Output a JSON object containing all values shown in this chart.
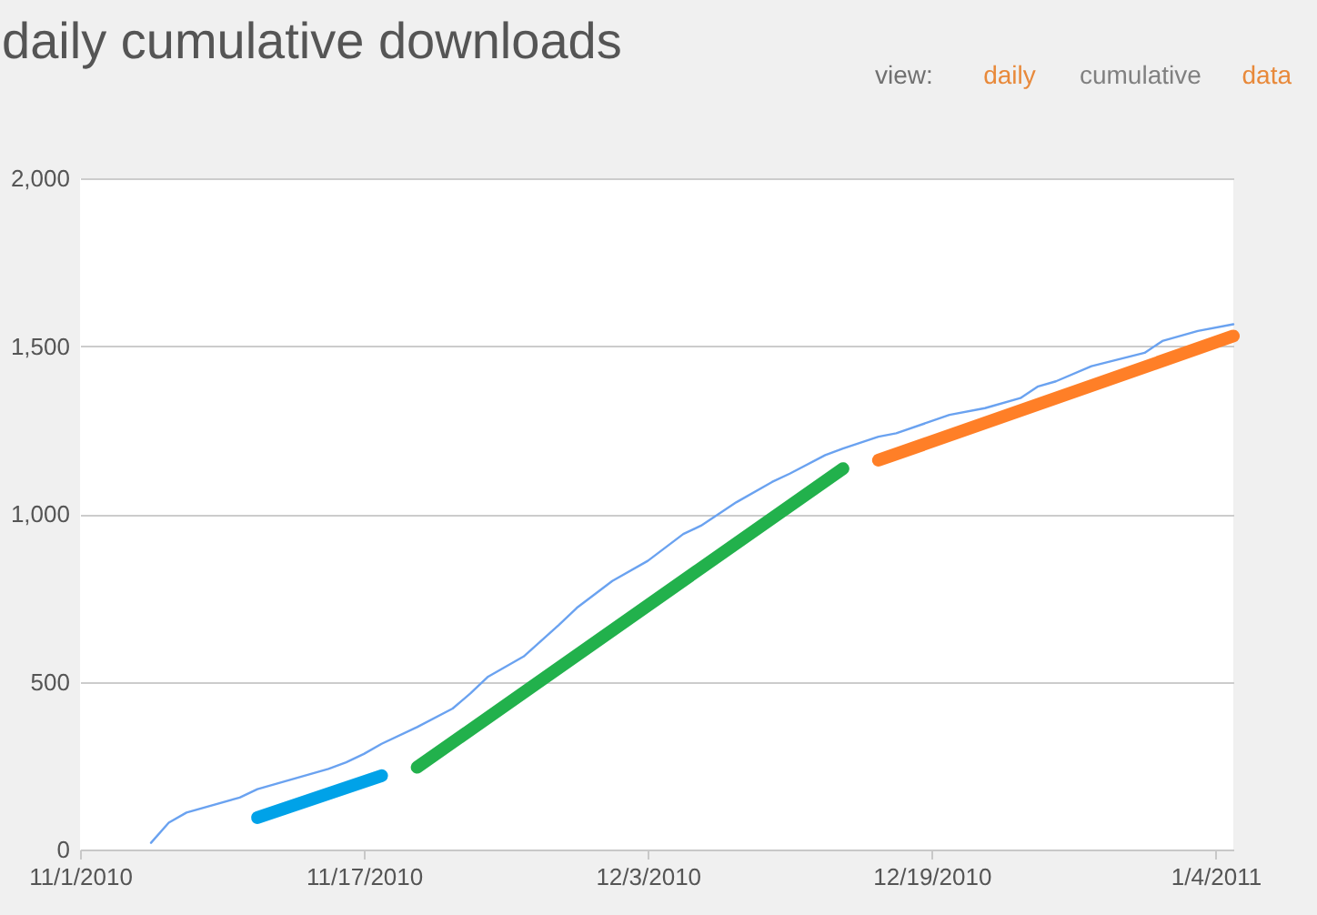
{
  "chart_data": {
    "type": "line",
    "title": "daily cumulative downloads",
    "annotations": [
      "view:",
      "daily",
      "cumulative",
      "data"
    ],
    "xlim": [
      "2010-11-01",
      "2011-01-05"
    ],
    "xticks": [
      {
        "value": "2010-11-01",
        "label": "11/1/2010"
      },
      {
        "value": "2010-11-17",
        "label": "11/17/2010"
      },
      {
        "value": "2010-12-03",
        "label": "12/3/2010"
      },
      {
        "value": "2010-12-19",
        "label": "12/19/2010"
      },
      {
        "value": "2011-01-04",
        "label": "1/4/2011"
      }
    ],
    "ylim": [
      0,
      2000
    ],
    "yticks": [
      {
        "value": 0,
        "label": "0"
      },
      {
        "value": 500,
        "label": "500"
      },
      {
        "value": 1000,
        "label": "1,000"
      },
      {
        "value": 1500,
        "label": "1,500"
      },
      {
        "value": 2000,
        "label": "2,000"
      }
    ],
    "grid": "y",
    "series": [
      {
        "color": "#6aa2f0",
        "x": [
          "2010-11-05",
          "2010-11-06",
          "2010-11-07",
          "2010-11-10",
          "2010-11-11",
          "2010-11-15",
          "2010-11-16",
          "2010-11-17",
          "2010-11-18",
          "2010-11-20",
          "2010-11-22",
          "2010-11-23",
          "2010-11-24",
          "2010-11-26",
          "2010-11-28",
          "2010-11-29",
          "2010-12-01",
          "2010-12-03",
          "2010-12-05",
          "2010-12-06",
          "2010-12-08",
          "2010-12-10",
          "2010-12-11",
          "2010-12-13",
          "2010-12-14",
          "2010-12-16",
          "2010-12-17",
          "2010-12-20",
          "2010-12-22",
          "2010-12-24",
          "2010-12-25",
          "2010-12-26",
          "2010-12-28",
          "2010-12-31",
          "2011-01-01",
          "2011-01-03",
          "2011-01-05"
        ],
        "values": [
          20,
          80,
          110,
          155,
          180,
          240,
          260,
          285,
          315,
          365,
          420,
          465,
          515,
          575,
          670,
          720,
          800,
          860,
          940,
          965,
          1035,
          1095,
          1120,
          1175,
          1195,
          1230,
          1240,
          1295,
          1315,
          1345,
          1380,
          1395,
          1440,
          1480,
          1515,
          1545,
          1565
        ]
      },
      {
        "color": "#00a2e8",
        "x": [
          "2010-11-11",
          "2010-11-18"
        ],
        "values": [
          95,
          220
        ]
      },
      {
        "color": "#22b14c",
        "x": [
          "2010-11-20",
          "2010-12-14"
        ],
        "values": [
          245,
          1135
        ]
      },
      {
        "color": "#ff7f27",
        "x": [
          "2010-12-16",
          "2011-01-05"
        ],
        "values": [
          1160,
          1530
        ]
      }
    ]
  }
}
